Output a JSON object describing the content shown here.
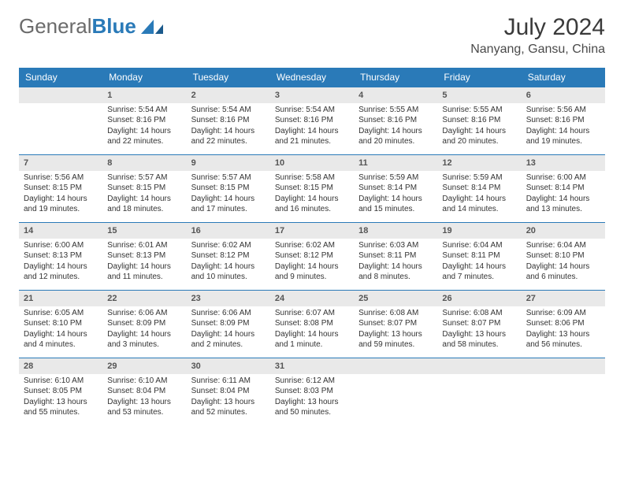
{
  "logo": {
    "text1": "General",
    "text2": "Blue"
  },
  "title": "July 2024",
  "location": "Nanyang, Gansu, China",
  "colors": {
    "header_bg": "#2a7ab8",
    "row_bg": "#e9e9e9",
    "border": "#2a7ab8"
  },
  "weekdays": [
    "Sunday",
    "Monday",
    "Tuesday",
    "Wednesday",
    "Thursday",
    "Friday",
    "Saturday"
  ],
  "weeks": [
    [
      null,
      {
        "n": "1",
        "sr": "5:54 AM",
        "ss": "8:16 PM",
        "dl": "14 hours and 22 minutes."
      },
      {
        "n": "2",
        "sr": "5:54 AM",
        "ss": "8:16 PM",
        "dl": "14 hours and 22 minutes."
      },
      {
        "n": "3",
        "sr": "5:54 AM",
        "ss": "8:16 PM",
        "dl": "14 hours and 21 minutes."
      },
      {
        "n": "4",
        "sr": "5:55 AM",
        "ss": "8:16 PM",
        "dl": "14 hours and 20 minutes."
      },
      {
        "n": "5",
        "sr": "5:55 AM",
        "ss": "8:16 PM",
        "dl": "14 hours and 20 minutes."
      },
      {
        "n": "6",
        "sr": "5:56 AM",
        "ss": "8:16 PM",
        "dl": "14 hours and 19 minutes."
      }
    ],
    [
      {
        "n": "7",
        "sr": "5:56 AM",
        "ss": "8:15 PM",
        "dl": "14 hours and 19 minutes."
      },
      {
        "n": "8",
        "sr": "5:57 AM",
        "ss": "8:15 PM",
        "dl": "14 hours and 18 minutes."
      },
      {
        "n": "9",
        "sr": "5:57 AM",
        "ss": "8:15 PM",
        "dl": "14 hours and 17 minutes."
      },
      {
        "n": "10",
        "sr": "5:58 AM",
        "ss": "8:15 PM",
        "dl": "14 hours and 16 minutes."
      },
      {
        "n": "11",
        "sr": "5:59 AM",
        "ss": "8:14 PM",
        "dl": "14 hours and 15 minutes."
      },
      {
        "n": "12",
        "sr": "5:59 AM",
        "ss": "8:14 PM",
        "dl": "14 hours and 14 minutes."
      },
      {
        "n": "13",
        "sr": "6:00 AM",
        "ss": "8:14 PM",
        "dl": "14 hours and 13 minutes."
      }
    ],
    [
      {
        "n": "14",
        "sr": "6:00 AM",
        "ss": "8:13 PM",
        "dl": "14 hours and 12 minutes."
      },
      {
        "n": "15",
        "sr": "6:01 AM",
        "ss": "8:13 PM",
        "dl": "14 hours and 11 minutes."
      },
      {
        "n": "16",
        "sr": "6:02 AM",
        "ss": "8:12 PM",
        "dl": "14 hours and 10 minutes."
      },
      {
        "n": "17",
        "sr": "6:02 AM",
        "ss": "8:12 PM",
        "dl": "14 hours and 9 minutes."
      },
      {
        "n": "18",
        "sr": "6:03 AM",
        "ss": "8:11 PM",
        "dl": "14 hours and 8 minutes."
      },
      {
        "n": "19",
        "sr": "6:04 AM",
        "ss": "8:11 PM",
        "dl": "14 hours and 7 minutes."
      },
      {
        "n": "20",
        "sr": "6:04 AM",
        "ss": "8:10 PM",
        "dl": "14 hours and 6 minutes."
      }
    ],
    [
      {
        "n": "21",
        "sr": "6:05 AM",
        "ss": "8:10 PM",
        "dl": "14 hours and 4 minutes."
      },
      {
        "n": "22",
        "sr": "6:06 AM",
        "ss": "8:09 PM",
        "dl": "14 hours and 3 minutes."
      },
      {
        "n": "23",
        "sr": "6:06 AM",
        "ss": "8:09 PM",
        "dl": "14 hours and 2 minutes."
      },
      {
        "n": "24",
        "sr": "6:07 AM",
        "ss": "8:08 PM",
        "dl": "14 hours and 1 minute."
      },
      {
        "n": "25",
        "sr": "6:08 AM",
        "ss": "8:07 PM",
        "dl": "13 hours and 59 minutes."
      },
      {
        "n": "26",
        "sr": "6:08 AM",
        "ss": "8:07 PM",
        "dl": "13 hours and 58 minutes."
      },
      {
        "n": "27",
        "sr": "6:09 AM",
        "ss": "8:06 PM",
        "dl": "13 hours and 56 minutes."
      }
    ],
    [
      {
        "n": "28",
        "sr": "6:10 AM",
        "ss": "8:05 PM",
        "dl": "13 hours and 55 minutes."
      },
      {
        "n": "29",
        "sr": "6:10 AM",
        "ss": "8:04 PM",
        "dl": "13 hours and 53 minutes."
      },
      {
        "n": "30",
        "sr": "6:11 AM",
        "ss": "8:04 PM",
        "dl": "13 hours and 52 minutes."
      },
      {
        "n": "31",
        "sr": "6:12 AM",
        "ss": "8:03 PM",
        "dl": "13 hours and 50 minutes."
      },
      null,
      null,
      null
    ]
  ],
  "labels": {
    "sunrise": "Sunrise:",
    "sunset": "Sunset:",
    "daylight": "Daylight:"
  }
}
